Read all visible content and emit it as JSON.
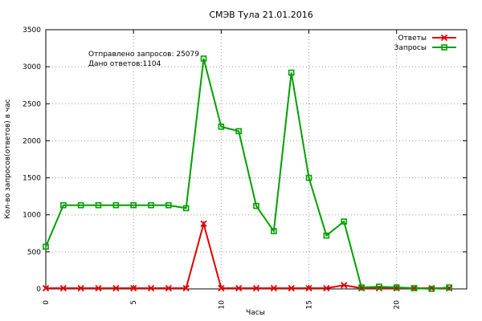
{
  "chart_data": {
    "type": "line",
    "title": "СМЭВ Тула 21.01.2016",
    "xlabel": "Часы",
    "ylabel": "Кол-во запросов(ответов) в час",
    "xlim": [
      0,
      24
    ],
    "ylim": [
      0,
      3500
    ],
    "xticks": [
      0,
      5,
      10,
      15,
      20
    ],
    "yticks": [
      0,
      500,
      1000,
      1500,
      2000,
      2500,
      3000,
      3500
    ],
    "grid": true,
    "legend_position": "top-right",
    "annotations": [
      "Отправлено запросов: 25079",
      "Дано ответов:1104"
    ],
    "x": [
      0,
      1,
      2,
      3,
      4,
      5,
      6,
      7,
      8,
      9,
      10,
      11,
      12,
      13,
      14,
      15,
      16,
      17,
      18,
      19,
      20,
      21,
      22,
      23
    ],
    "series": [
      {
        "name": "Ответы",
        "color": "#e00000",
        "marker": "x",
        "values": [
          10,
          10,
          10,
          10,
          10,
          10,
          10,
          10,
          10,
          880,
          10,
          10,
          10,
          10,
          10,
          10,
          10,
          50,
          10,
          10,
          10,
          10,
          10,
          10
        ]
      },
      {
        "name": "Запросы",
        "color": "#00a000",
        "marker": "square",
        "values": [
          570,
          1130,
          1130,
          1130,
          1130,
          1130,
          1130,
          1130,
          1090,
          3110,
          2190,
          2130,
          1120,
          780,
          2920,
          1500,
          720,
          910,
          20,
          30,
          20,
          10,
          0,
          20
        ]
      }
    ]
  }
}
